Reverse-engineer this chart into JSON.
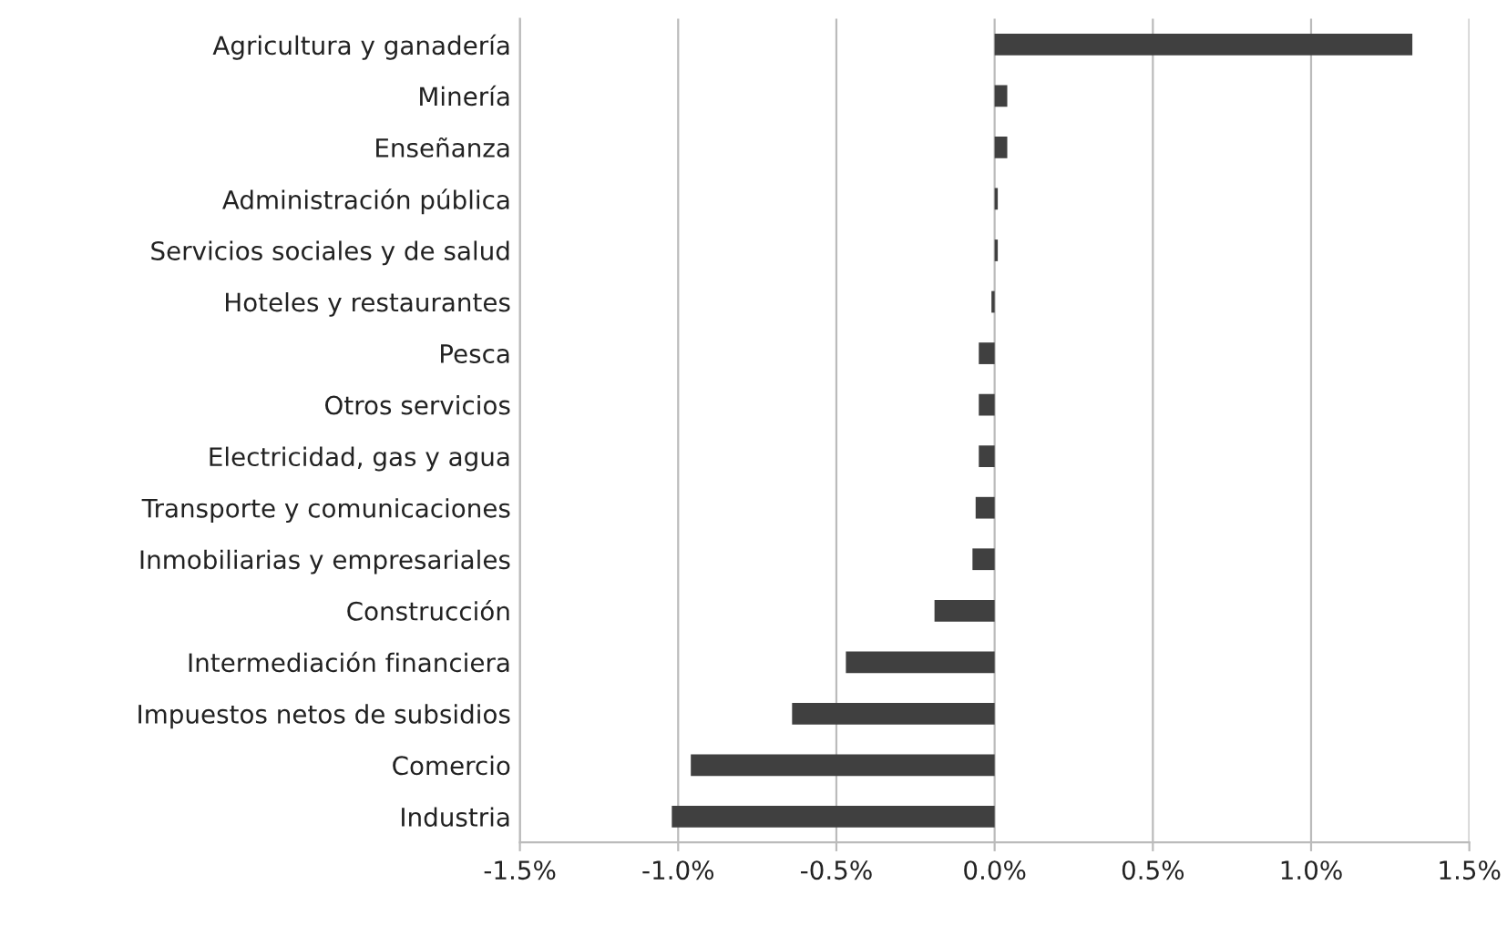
{
  "chart_data": {
    "type": "bar",
    "orientation": "horizontal",
    "categories": [
      "Agricultura y ganadería",
      "Minería",
      "Enseñanza",
      "Administración pública",
      "Servicios sociales y de salud",
      "Hoteles y restaurantes",
      "Pesca",
      "Otros servicios",
      "Electricidad, gas y agua",
      "Transporte y comunicaciones",
      "Inmobiliarias y empresariales",
      "Construcción",
      "Intermediación financiera",
      "Impuestos netos de subsidios",
      "Comercio",
      "Industria"
    ],
    "values": [
      1.32,
      0.04,
      0.04,
      0.01,
      0.01,
      -0.01,
      -0.05,
      -0.05,
      -0.05,
      -0.06,
      -0.07,
      -0.19,
      -0.47,
      -0.64,
      -0.96,
      -1.02
    ],
    "color": "#404040",
    "xlim": [
      -1.5,
      1.5
    ],
    "xticks": [
      {
        "value": -1.5,
        "label": "-1.5%"
      },
      {
        "value": -1.0,
        "label": "-1.0%"
      },
      {
        "value": -0.5,
        "label": "-0.5%"
      },
      {
        "value": 0.0,
        "label": "0.0%"
      },
      {
        "value": 0.5,
        "label": "0.5%"
      },
      {
        "value": 1.0,
        "label": "1.0%"
      },
      {
        "value": 1.5,
        "label": "1.5%"
      }
    ],
    "grid": "x"
  }
}
